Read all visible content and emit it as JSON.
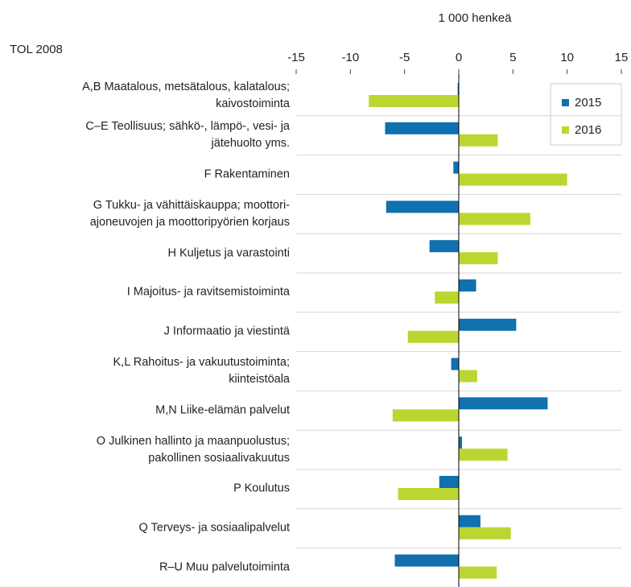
{
  "chart_data": {
    "type": "bar",
    "orientation": "horizontal",
    "title_left": "TOL 2008",
    "axis_label": "1 000 henkeä",
    "categories": [
      "A,B Maatalous, metsätalous, kalatalous;\nkaivostoiminta",
      "C–E Teollisuus; sähkö-, lämpö-, vesi- ja\njätehuolto yms.",
      "F Rakentaminen",
      "G Tukku- ja vähittäiskauppa; moottori-\najoneuvojen ja moottoripyörien korjaus",
      "H Kuljetus ja varastointi",
      "I Majoitus- ja ravitsemistoiminta",
      "J Informaatio ja viestintä",
      "K,L Rahoitus- ja vakuutustoiminta;\nkiinteistöala",
      "M,N Liike-elämän palvelut",
      "O Julkinen hallinto ja maanpuolustus;\npakollinen sosiaalivakuutus",
      "P Koulutus",
      "Q Terveys- ja sosiaalipalvelut",
      "R–U Muu palvelutoiminta"
    ],
    "series": [
      {
        "name": "2015",
        "color": "#1170ae",
        "values": [
          -0.1,
          -6.8,
          -0.5,
          -6.7,
          -2.7,
          1.6,
          5.3,
          -0.7,
          8.2,
          0.3,
          -1.8,
          2.0,
          -5.9
        ]
      },
      {
        "name": "2016",
        "color": "#bcd631",
        "values": [
          -8.3,
          3.6,
          10.0,
          6.6,
          3.6,
          -2.2,
          -4.7,
          1.7,
          -6.1,
          4.5,
          -5.6,
          4.8,
          3.5
        ]
      }
    ],
    "xlim": [
      -15,
      15
    ],
    "xticks": [
      -15,
      -10,
      -5,
      0,
      5,
      10,
      15
    ],
    "legend": "top-right"
  }
}
